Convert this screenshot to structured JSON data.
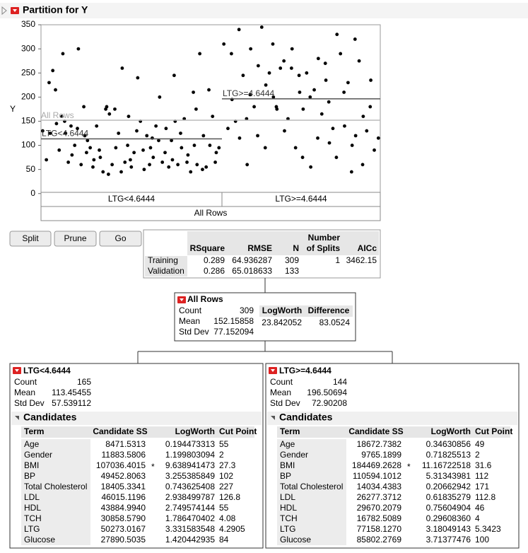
{
  "title": "Partition for Y",
  "chart_data": {
    "type": "scatter",
    "y_label": "Y",
    "ylim": [
      -18,
      350
    ],
    "yticks": [
      0,
      50,
      100,
      150,
      200,
      250,
      300,
      350
    ],
    "groups": [
      {
        "values": [
          130,
          70,
          125,
          230,
          255,
          145,
          215,
          90,
          290,
          160,
          125,
          150,
          65,
          80,
          140,
          100,
          300,
          135,
          60,
          120,
          180,
          110,
          85,
          95,
          70,
          55,
          140,
          75,
          90,
          45,
          180,
          175,
          165,
          40,
          60,
          95,
          175,
          125,
          260,
          45,
          65,
          160,
          100,
          55,
          70,
          85,
          240,
          130,
          150,
          50,
          90,
          120,
          95,
          60,
          75,
          115,
          140,
          200,
          110,
          65,
          135,
          85,
          55,
          70,
          110,
          150,
          245,
          60,
          95,
          125,
          155,
          80,
          65,
          45,
          100,
          210,
          60,
          175,
          290,
          120,
          50,
          55,
          100,
          215,
          160,
          85,
          65,
          95
        ]
      },
      {
        "values": [
          310,
          135,
          195,
          290,
          150,
          115,
          340,
          245,
          60,
          155,
          300,
          205,
          180,
          265,
          120,
          345,
          225,
          95,
          250,
          200,
          310,
          175,
          180,
          260,
          130,
          275,
          155,
          300,
          260,
          95,
          210,
          245,
          175,
          75,
          250,
          55,
          200,
          215,
          280,
          115,
          165,
          235,
          270,
          105,
          190,
          135,
          330,
          75,
          290,
          140,
          210,
          230,
          100,
          45,
          120,
          320,
          275,
          160,
          60,
          130,
          235,
          180,
          90,
          115
        ]
      }
    ]
  },
  "buttons": [
    "Split",
    "Prune",
    "Go"
  ],
  "summary": {
    "headers": [
      "RSquare",
      "RMSE",
      "N",
      "Number of Splits",
      "AICc"
    ],
    "rows": [
      {
        "label": "Training",
        "values": [
          0.289,
          64.936287,
          309,
          1,
          3462.15
        ]
      },
      {
        "label": "Validation",
        "values": [
          0.286,
          65.018633,
          133
        ]
      }
    ]
  },
  "node_labels": {
    "count": "Count",
    "mean": "Mean",
    "std_dev": "Std Dev",
    "logworth": "LogWorth",
    "difference": "Difference"
  },
  "candidates_title": "Candidates",
  "candidate_headers": [
    "Term",
    "Candidate SS",
    "LogWorth",
    "Cut Point"
  ],
  "nodes": [
    {
      "title": "All Rows",
      "count": 309,
      "mean": 152.15858,
      "std_dev": 77.152094,
      "logworth": 23.842052,
      "difference": 83.0524
    },
    {
      "title": "LTG<4.6444",
      "count": 165,
      "mean": 113.45455,
      "std_dev": 57.539112,
      "candidates": [
        {
          "term": "Age",
          "ss": 8471.5313,
          "logworth": 0.194473313,
          "cut": 55
        },
        {
          "term": "Gender",
          "ss": 11883.5806,
          "logworth": 1.199803094,
          "cut": 2
        },
        {
          "term": "BMI",
          "ss": 107036.4015,
          "flag": "*",
          "logworth": 9.638941473,
          "cut": 27.3
        },
        {
          "term": "BP",
          "ss": 49452.8063,
          "logworth": 3.255385849,
          "cut": 102
        },
        {
          "term": "Total Cholesterol",
          "ss": 18405.3341,
          "logworth": 0.743625408,
          "cut": 227
        },
        {
          "term": "LDL",
          "ss": 46015.1196,
          "logworth": 2.938499787,
          "cut": 126.8
        },
        {
          "term": "HDL",
          "ss": "43884.9940",
          "logworth": 2.749574144,
          "cut": 55
        },
        {
          "term": "TCH",
          "ss": "30858.5790",
          "logworth": 1.786470402,
          "cut": 4.08
        },
        {
          "term": "LTG",
          "ss": 50273.0167,
          "logworth": 3.331583548,
          "cut": 4.2905
        },
        {
          "term": "Glucose",
          "ss": 27890.5035,
          "logworth": 1.420442935,
          "cut": 84
        }
      ]
    },
    {
      "title": "LTG>=4.6444",
      "count": 144,
      "mean": 196.50694,
      "std_dev": 72.90208,
      "candidates": [
        {
          "term": "Age",
          "ss": 18672.7382,
          "logworth": 0.34630856,
          "cut": 49
        },
        {
          "term": "Gender",
          "ss": 9765.1899,
          "logworth": 0.71825513,
          "cut": 2
        },
        {
          "term": "BMI",
          "ss": 184469.2628,
          "flag": "*",
          "logworth": 11.16722518,
          "cut": 31.6
        },
        {
          "term": "BP",
          "ss": 110594.1012,
          "logworth": 5.31343981,
          "cut": 112
        },
        {
          "term": "Total Cholesterol",
          "ss": 14034.4383,
          "logworth": 0.20662942,
          "cut": 171
        },
        {
          "term": "LDL",
          "ss": 26277.3712,
          "logworth": 0.61835279,
          "cut": 112.8
        },
        {
          "term": "HDL",
          "ss": 29670.2079,
          "logworth": 0.75604904,
          "cut": 46
        },
        {
          "term": "TCH",
          "ss": 16782.5089,
          "logworth": "0.29608360",
          "cut": 4
        },
        {
          "term": "LTG",
          "ss": "77158.1270",
          "logworth": 3.18049143,
          "cut": 5.3423
        },
        {
          "term": "Glucose",
          "ss": 85802.2769,
          "logworth": 3.71377476,
          "cut": 100
        }
      ]
    }
  ]
}
